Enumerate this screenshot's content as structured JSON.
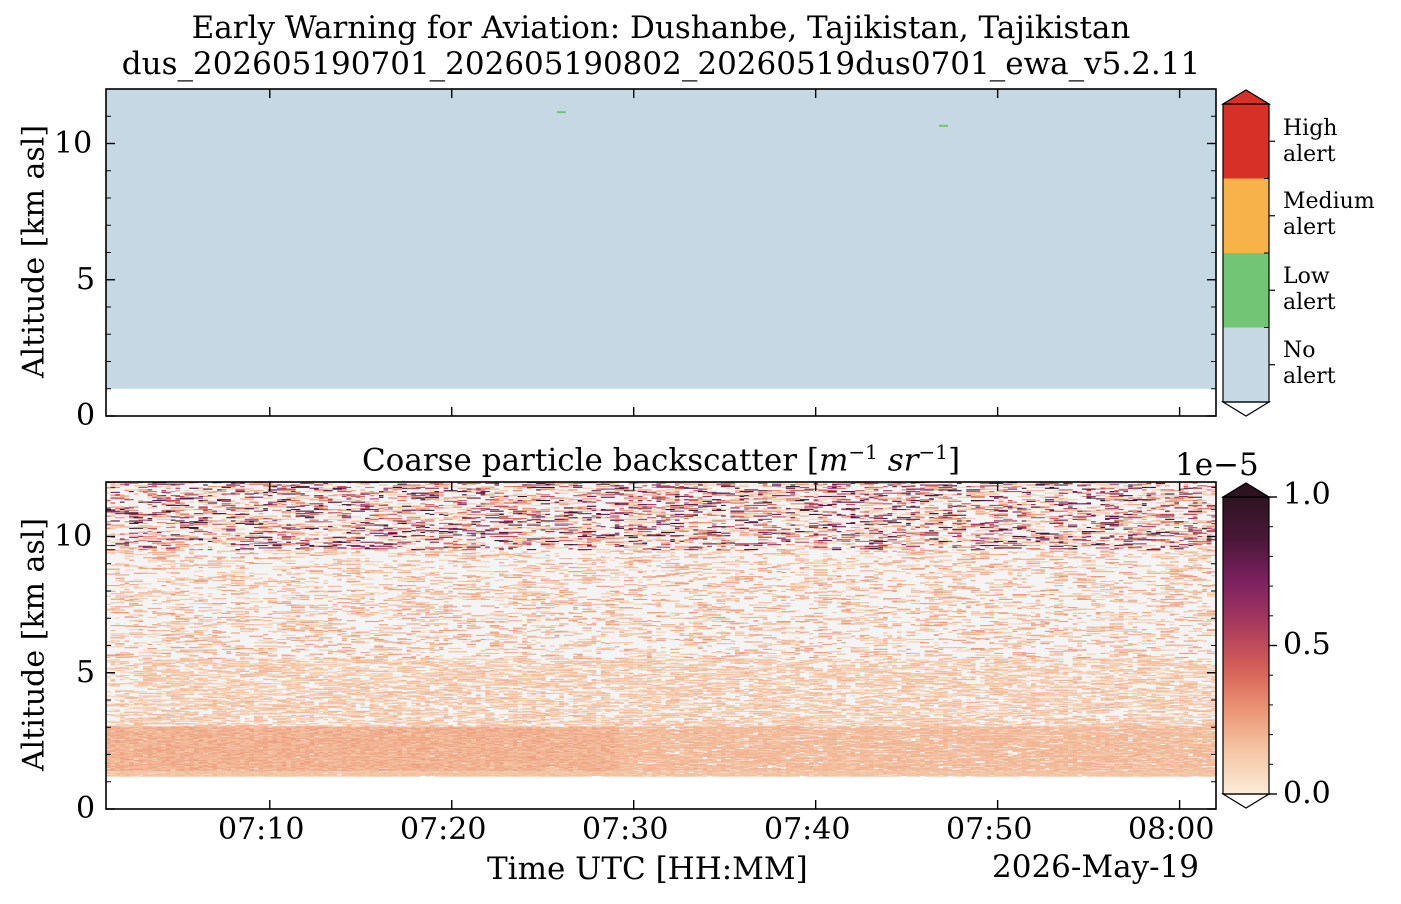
{
  "chart_data": [
    {
      "type": "heatmap",
      "title": "Early Warning for Aviation: Dushanbe, Tajikistan, Tajikistan",
      "subtitle": "dus_202605190701_202605190802_20260519dus0701_ewa_v5.2.11",
      "ylabel": "Altitude [km asl]",
      "ylim": [
        0,
        12
      ],
      "yticks": [
        0,
        5,
        10
      ],
      "xlim": [
        "07:01",
        "08:02"
      ],
      "colorbar": {
        "type": "categorical",
        "categories": [
          {
            "label": "High\nalert",
            "color": "#d73027"
          },
          {
            "label": "Medium\nalert",
            "color": "#f7b34a"
          },
          {
            "label": "Low\nalert",
            "color": "#72c574"
          },
          {
            "label": "No\nalert",
            "color": "#c5d8e4"
          }
        ]
      },
      "regions": [
        {
          "category": "No alert",
          "t_start": "07:01",
          "t_end": "08:02",
          "alt_min": 1.0,
          "alt_max": 12.0
        }
      ],
      "points": [
        {
          "category": "Low alert",
          "time": "07:26",
          "alt": 11.15
        },
        {
          "category": "Low alert",
          "time": "07:47",
          "alt": 10.65
        }
      ]
    },
    {
      "type": "heatmap",
      "title": "Coarse particle backscatter [m⁻¹ sr⁻¹]",
      "title_main": "Coarse particle backscatter [",
      "title_unit_m": "m",
      "title_unit_m_exp": "−1",
      "title_unit_sr": "sr",
      "title_unit_sr_exp": "−1",
      "title_close": "]",
      "ylabel": "Altitude [km asl]",
      "ylim": [
        0,
        12
      ],
      "yticks": [
        0,
        5,
        10
      ],
      "xlabel": "Time UTC [HH:MM]",
      "date_label": "2026-May-19",
      "xticks": [
        "07:10",
        "07:20",
        "07:30",
        "07:40",
        "07:50",
        "08:00"
      ],
      "xlim": [
        "07:01",
        "08:02"
      ],
      "colorbar": {
        "type": "continuous",
        "min": 0.0,
        "max": 1.0,
        "ticks": [
          "0.0",
          "0.5",
          "1.0"
        ],
        "offset_label": "1e−5",
        "scale": 1e-05,
        "colormap": [
          "#fbecd9",
          "#f4c7a6",
          "#eb9474",
          "#d45e58",
          "#a83a5e",
          "#7c2160",
          "#4a1838",
          "#2d1320"
        ]
      },
      "profile_description": "Signal starts at 1.2 km asl; dense aerosol layer 1.3-3 km (~0.15-0.25e-5), sparse streaks 3-11 km (~0.1-0.4e-5), noisier high values near 10-12 km (up to ~1.0e-5)."
    }
  ]
}
